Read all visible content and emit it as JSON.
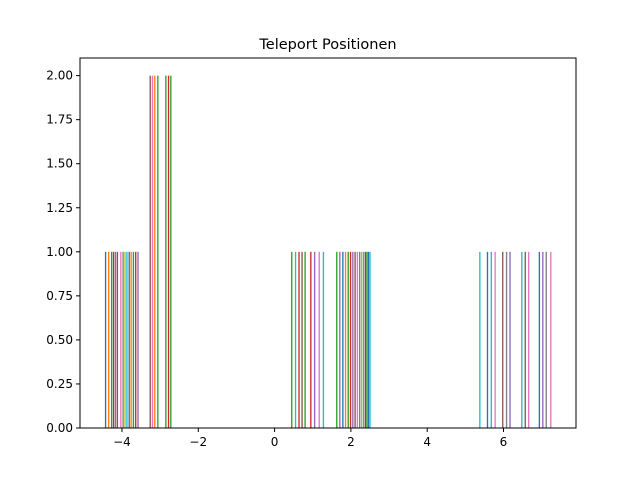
{
  "chart_data": {
    "type": "bar",
    "title": "Teleport Positionen",
    "xlabel": "",
    "ylabel": "",
    "xlim": [
      -5.1,
      7.9
    ],
    "ylim": [
      0,
      2.1
    ],
    "x_ticks": [
      -4,
      -2,
      0,
      2,
      4,
      6
    ],
    "x_tick_labels": [
      "−4",
      "−2",
      "0",
      "2",
      "4",
      "6"
    ],
    "y_ticks": [
      0,
      0.25,
      0.5,
      0.75,
      1,
      1.25,
      1.5,
      1.75,
      2
    ],
    "y_tick_labels": [
      "0.00",
      "0.25",
      "0.50",
      "0.75",
      "1.00",
      "1.25",
      "1.50",
      "1.75",
      "2.00"
    ],
    "grid": false,
    "bar_width": 0.035,
    "bars": [
      {
        "x": -4.43,
        "value": 1,
        "color": "#1f77b4"
      },
      {
        "x": -4.35,
        "value": 1,
        "color": "#ff7f0e"
      },
      {
        "x": -4.27,
        "value": 1,
        "color": "#2ca02c"
      },
      {
        "x": -4.22,
        "value": 1,
        "color": "#d62728"
      },
      {
        "x": -4.17,
        "value": 1,
        "color": "#9467bd"
      },
      {
        "x": -4.12,
        "value": 1,
        "color": "#8c564b"
      },
      {
        "x": -4.03,
        "value": 1,
        "color": "#e377c2"
      },
      {
        "x": -3.97,
        "value": 1,
        "color": "#7f7f7f"
      },
      {
        "x": -3.92,
        "value": 1,
        "color": "#bcbd22"
      },
      {
        "x": -3.87,
        "value": 1,
        "color": "#17becf"
      },
      {
        "x": -3.81,
        "value": 1,
        "color": "#1f77b4"
      },
      {
        "x": -3.76,
        "value": 1,
        "color": "#ff7f0e"
      },
      {
        "x": -3.7,
        "value": 1,
        "color": "#2ca02c"
      },
      {
        "x": -3.64,
        "value": 1,
        "color": "#d62728"
      },
      {
        "x": -3.58,
        "value": 1,
        "color": "#9467bd"
      },
      {
        "x": -3.26,
        "value": 2,
        "color": "#8c564b"
      },
      {
        "x": -3.2,
        "value": 2,
        "color": "#e377c2"
      },
      {
        "x": -3.14,
        "value": 2,
        "color": "#ff7f0e"
      },
      {
        "x": -3.06,
        "value": 2,
        "color": "#2ca02c"
      },
      {
        "x": -2.85,
        "value": 2,
        "color": "#2ca02c"
      },
      {
        "x": -2.78,
        "value": 2,
        "color": "#d62728"
      },
      {
        "x": -2.72,
        "value": 2,
        "color": "#2ca02c"
      },
      {
        "x": 0.45,
        "value": 1,
        "color": "#2ca02c"
      },
      {
        "x": 0.55,
        "value": 1,
        "color": "#17becf"
      },
      {
        "x": 0.64,
        "value": 1,
        "color": "#d62728"
      },
      {
        "x": 0.72,
        "value": 1,
        "color": "#8c564b"
      },
      {
        "x": 0.8,
        "value": 1,
        "color": "#2ca02c"
      },
      {
        "x": 0.95,
        "value": 1,
        "color": "#d62728"
      },
      {
        "x": 1.05,
        "value": 1,
        "color": "#9467bd"
      },
      {
        "x": 1.17,
        "value": 1,
        "color": "#e377c2"
      },
      {
        "x": 1.28,
        "value": 1,
        "color": "#17becf"
      },
      {
        "x": 1.63,
        "value": 1,
        "color": "#2ca02c"
      },
      {
        "x": 1.71,
        "value": 1,
        "color": "#9467bd"
      },
      {
        "x": 1.79,
        "value": 1,
        "color": "#1f77b4"
      },
      {
        "x": 1.86,
        "value": 1,
        "color": "#ff7f0e"
      },
      {
        "x": 1.93,
        "value": 1,
        "color": "#2ca02c"
      },
      {
        "x": 1.99,
        "value": 1,
        "color": "#d62728"
      },
      {
        "x": 2.05,
        "value": 1,
        "color": "#9467bd"
      },
      {
        "x": 2.11,
        "value": 1,
        "color": "#8c564b"
      },
      {
        "x": 2.17,
        "value": 1,
        "color": "#e377c2"
      },
      {
        "x": 2.23,
        "value": 1,
        "color": "#7f7f7f"
      },
      {
        "x": 2.28,
        "value": 1,
        "color": "#bcbd22"
      },
      {
        "x": 2.33,
        "value": 1,
        "color": "#17becf"
      },
      {
        "x": 2.38,
        "value": 1,
        "color": "#d62728"
      },
      {
        "x": 2.42,
        "value": 1,
        "color": "#2ca02c"
      },
      {
        "x": 2.46,
        "value": 1,
        "color": "#1f77b4"
      },
      {
        "x": 2.5,
        "value": 1,
        "color": "#17becf"
      },
      {
        "x": 5.38,
        "value": 1,
        "color": "#17becf"
      },
      {
        "x": 5.58,
        "value": 1,
        "color": "#1f77b4"
      },
      {
        "x": 5.68,
        "value": 1,
        "color": "#17becf"
      },
      {
        "x": 5.78,
        "value": 1,
        "color": "#e377c2"
      },
      {
        "x": 5.98,
        "value": 1,
        "color": "#8c564b"
      },
      {
        "x": 6.08,
        "value": 1,
        "color": "#7f7f7f"
      },
      {
        "x": 6.17,
        "value": 1,
        "color": "#9467bd"
      },
      {
        "x": 6.48,
        "value": 1,
        "color": "#17becf"
      },
      {
        "x": 6.57,
        "value": 1,
        "color": "#8c564b"
      },
      {
        "x": 6.66,
        "value": 1,
        "color": "#e377c2"
      },
      {
        "x": 6.94,
        "value": 1,
        "color": "#1f77b4"
      },
      {
        "x": 7.03,
        "value": 1,
        "color": "#9467bd"
      },
      {
        "x": 7.12,
        "value": 1,
        "color": "#7f7f7f"
      },
      {
        "x": 7.24,
        "value": 1,
        "color": "#e377c2"
      }
    ]
  }
}
